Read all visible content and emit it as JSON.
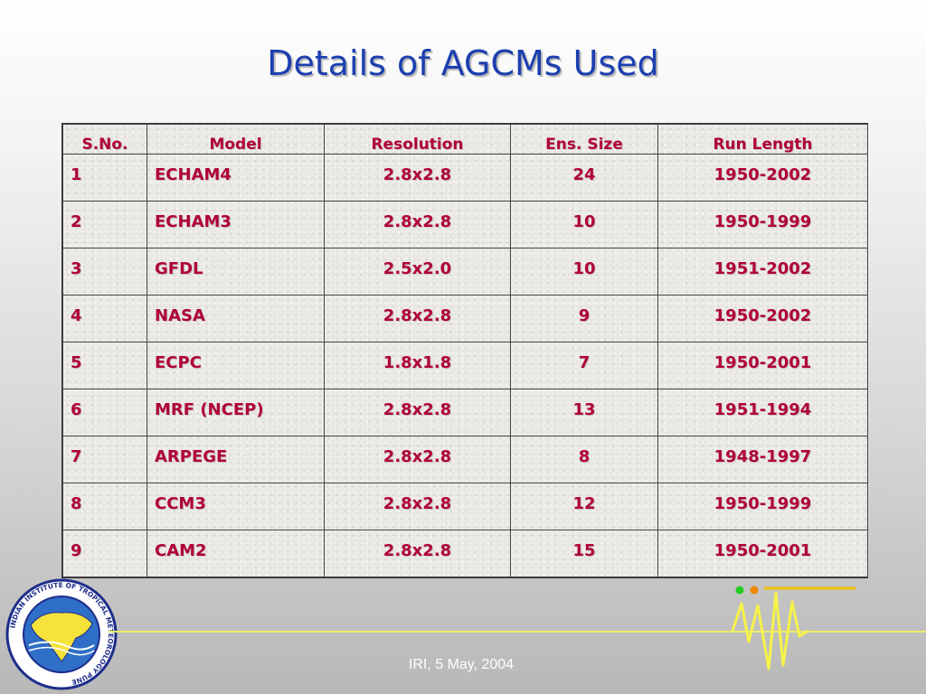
{
  "slide": {
    "title": "Details of AGCMs Used",
    "footer": "IRI, 5 May, 2004"
  },
  "table": {
    "headers": [
      "S.No.",
      "Model",
      "Resolution",
      "Ens. Size",
      "Run Length"
    ],
    "rows": [
      [
        "1",
        "ECHAM4",
        "2.8x2.8",
        "24",
        "1950-2002"
      ],
      [
        "2",
        "ECHAM3",
        "2.8x2.8",
        "10",
        "1950-1999"
      ],
      [
        "3",
        "GFDL",
        "2.5x2.0",
        "10",
        "1951-2002"
      ],
      [
        "4",
        "NASA",
        "2.8x2.8",
        "9",
        "1950-2002"
      ],
      [
        "5",
        "ECPC",
        "1.8x1.8",
        "7",
        "1950-2001"
      ],
      [
        "6",
        "MRF (NCEP)",
        "2.8x2.8",
        "13",
        "1951-1994"
      ],
      [
        "7",
        "ARPEGE",
        "2.8x2.8",
        "8",
        "1948-1997"
      ],
      [
        "8",
        "CCM3",
        "2.8x2.8",
        "12",
        "1950-1999"
      ],
      [
        "9",
        "CAM2",
        "2.8x2.8",
        "15",
        "1950-2001"
      ]
    ]
  },
  "logo": {
    "text": "INDIAN INSTITUTE OF TROPICAL METEOROLOGY PUNE"
  },
  "colors": {
    "title": "#1c3fb0",
    "cell_text": "#b0003a",
    "accent_line": "#ecec6a",
    "dot_green": "#22cc22",
    "dot_orange": "#ee8800"
  }
}
